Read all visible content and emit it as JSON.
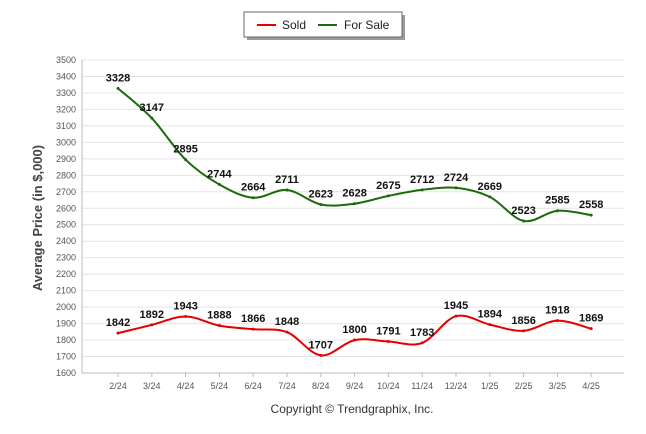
{
  "chart_data": {
    "type": "line",
    "categories": [
      "2/24",
      "3/24",
      "4/24",
      "5/24",
      "6/24",
      "7/24",
      "8/24",
      "9/24",
      "10/24",
      "11/24",
      "12/24",
      "1/25",
      "2/25",
      "3/25",
      "4/25"
    ],
    "series": [
      {
        "name": "Sold",
        "color": "#e60000",
        "values": [
          1842,
          1892,
          1943,
          1888,
          1866,
          1848,
          1707,
          1800,
          1791,
          1783,
          1945,
          1894,
          1856,
          1918,
          1869
        ]
      },
      {
        "name": "For Sale",
        "color": "#1a6b0a",
        "values": [
          3328,
          3147,
          2895,
          2744,
          2664,
          2711,
          2623,
          2628,
          2675,
          2712,
          2724,
          2669,
          2523,
          2585,
          2558
        ]
      }
    ],
    "ylabel": "Average Price (in $,000)",
    "xlabel": "",
    "ylim": [
      1600,
      3500
    ],
    "yticks": [
      1600,
      1700,
      1800,
      1900,
      2000,
      2100,
      2200,
      2300,
      2400,
      2500,
      2600,
      2700,
      2800,
      2900,
      3000,
      3100,
      3200,
      3300,
      3400,
      3500
    ],
    "grid": true,
    "legend_position": "top-center",
    "credit": "Copyright © Trendgraphix, Inc."
  }
}
